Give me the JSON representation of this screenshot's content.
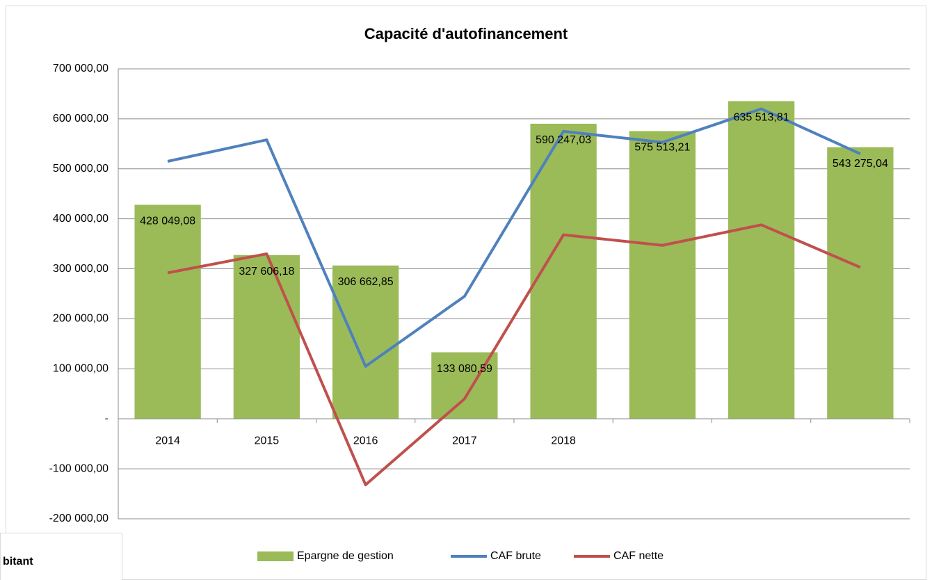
{
  "chart_data": {
    "type": "bar_line",
    "title": "Capacité d'autofinancement",
    "categories": [
      "2014",
      "2015",
      "2016",
      "2017",
      "2018",
      null,
      null,
      null
    ],
    "series": [
      {
        "name": "Epargne de gestion",
        "type": "bar",
        "color": "#9bbb59",
        "values": [
          428049.08,
          327606.18,
          306662.85,
          133080.59,
          590247.03,
          575513.21,
          635513.81,
          543275.04
        ],
        "value_labels": [
          "428 049,08",
          "327 606,18",
          "306 662,85",
          "133 080,59",
          "590 247,03",
          "575 513,21",
          "635 513,81",
          "543 275,04"
        ]
      },
      {
        "name": "CAF brute",
        "type": "line",
        "color": "#4f81bd",
        "values": [
          515000,
          558000,
          105000,
          245000,
          575000,
          553000,
          620000,
          530000
        ]
      },
      {
        "name": "CAF nette",
        "type": "line",
        "color": "#c0504d",
        "values": [
          292000,
          330000,
          -132000,
          40000,
          368000,
          347000,
          388000,
          303000
        ]
      }
    ],
    "ylim": [
      -200000,
      700000
    ],
    "yticks": [
      {
        "value": -200000,
        "label": "-200 000,00"
      },
      {
        "value": -100000,
        "label": "-100 000,00"
      },
      {
        "value": 0,
        "label": "-"
      },
      {
        "value": 100000,
        "label": "100 000,00"
      },
      {
        "value": 200000,
        "label": "200 000,00"
      },
      {
        "value": 300000,
        "label": "300 000,00"
      },
      {
        "value": 400000,
        "label": "400 000,00"
      },
      {
        "value": 500000,
        "label": "500 000,00"
      },
      {
        "value": 600000,
        "label": "600 000,00"
      },
      {
        "value": 700000,
        "label": "700 000,00"
      }
    ],
    "grid": true,
    "legend": "bottom"
  },
  "overlay_text": "bitant"
}
